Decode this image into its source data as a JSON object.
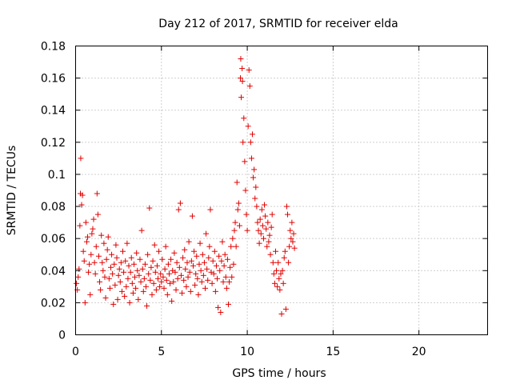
{
  "chart_data": {
    "type": "scatter",
    "title": "Day 212 of 2017, SRMTID for receiver elda",
    "xlabel": "GPS time / hours",
    "ylabel": "SRMTID / TECUs",
    "xlim": [
      0,
      24
    ],
    "ylim": [
      0,
      0.18
    ],
    "x_ticks": [
      0,
      5,
      10,
      15,
      20
    ],
    "x_tick_labels": [
      "0",
      "5",
      "10",
      "15",
      "20"
    ],
    "y_ticks": [
      0,
      0.02,
      0.04,
      0.06,
      0.08,
      0.1,
      0.12,
      0.14,
      0.16,
      0.18
    ],
    "y_tick_labels": [
      "0",
      "0.02",
      "0.04",
      "0.06",
      "0.08",
      "0.1",
      "0.12",
      "0.14",
      "0.16",
      "0.18"
    ],
    "grid": true,
    "marker": "+",
    "series": [
      {
        "name": "SRMTID",
        "color": "#e00000",
        "points": [
          [
            0.05,
            0.032
          ],
          [
            0.1,
            0.028
          ],
          [
            0.15,
            0.036
          ],
          [
            0.2,
            0.041
          ],
          [
            0.25,
            0.068
          ],
          [
            0.28,
            0.088
          ],
          [
            0.3,
            0.11
          ],
          [
            0.35,
            0.081
          ],
          [
            0.4,
            0.087
          ],
          [
            0.45,
            0.052
          ],
          [
            0.5,
            0.046
          ],
          [
            0.55,
            0.02
          ],
          [
            0.6,
            0.07
          ],
          [
            0.65,
            0.058
          ],
          [
            0.7,
            0.061
          ],
          [
            0.75,
            0.039
          ],
          [
            0.8,
            0.044
          ],
          [
            0.85,
            0.025
          ],
          [
            0.9,
            0.05
          ],
          [
            0.95,
            0.063
          ],
          [
            1.0,
            0.066
          ],
          [
            1.05,
            0.072
          ],
          [
            1.1,
            0.045
          ],
          [
            1.15,
            0.038
          ],
          [
            1.2,
            0.055
          ],
          [
            1.25,
            0.088
          ],
          [
            1.3,
            0.075
          ],
          [
            1.35,
            0.049
          ],
          [
            1.4,
            0.033
          ],
          [
            1.45,
            0.028
          ],
          [
            1.5,
            0.062
          ],
          [
            1.55,
            0.045
          ],
          [
            1.6,
            0.04
          ],
          [
            1.65,
            0.057
          ],
          [
            1.7,
            0.036
          ],
          [
            1.75,
            0.023
          ],
          [
            1.8,
            0.047
          ],
          [
            1.85,
            0.053
          ],
          [
            1.9,
            0.061
          ],
          [
            1.95,
            0.035
          ],
          [
            2.0,
            0.029
          ],
          [
            2.05,
            0.042
          ],
          [
            2.1,
            0.05
          ],
          [
            2.15,
            0.038
          ],
          [
            2.2,
            0.019
          ],
          [
            2.25,
            0.044
          ],
          [
            2.3,
            0.031
          ],
          [
            2.35,
            0.056
          ],
          [
            2.4,
            0.048
          ],
          [
            2.45,
            0.022
          ],
          [
            2.5,
            0.037
          ],
          [
            2.55,
            0.041
          ],
          [
            2.6,
            0.033
          ],
          [
            2.65,
            0.045
          ],
          [
            2.7,
            0.027
          ],
          [
            2.75,
            0.052
          ],
          [
            2.8,
            0.039
          ],
          [
            2.85,
            0.024
          ],
          [
            2.9,
            0.046
          ],
          [
            2.95,
            0.03
          ],
          [
            3.0,
            0.057
          ],
          [
            3.05,
            0.035
          ],
          [
            3.1,
            0.043
          ],
          [
            3.15,
            0.02
          ],
          [
            3.2,
            0.039
          ],
          [
            3.25,
            0.048
          ],
          [
            3.3,
            0.032
          ],
          [
            3.35,
            0.026
          ],
          [
            3.4,
            0.044
          ],
          [
            3.45,
            0.036
          ],
          [
            3.5,
            0.029
          ],
          [
            3.55,
            0.051
          ],
          [
            3.6,
            0.04
          ],
          [
            3.65,
            0.022
          ],
          [
            3.7,
            0.037
          ],
          [
            3.75,
            0.047
          ],
          [
            3.8,
            0.033
          ],
          [
            3.85,
            0.065
          ],
          [
            3.9,
            0.041
          ],
          [
            3.95,
            0.027
          ],
          [
            4.0,
            0.035
          ],
          [
            4.05,
            0.044
          ],
          [
            4.1,
            0.03
          ],
          [
            4.15,
            0.018
          ],
          [
            4.2,
            0.05
          ],
          [
            4.25,
            0.038
          ],
          [
            4.3,
            0.079
          ],
          [
            4.35,
            0.034
          ],
          [
            4.4,
            0.042
          ],
          [
            4.45,
            0.025
          ],
          [
            4.5,
            0.046
          ],
          [
            4.55,
            0.032
          ],
          [
            4.6,
            0.056
          ],
          [
            4.65,
            0.039
          ],
          [
            4.7,
            0.028
          ],
          [
            4.75,
            0.043
          ],
          [
            4.8,
            0.035
          ],
          [
            4.85,
            0.052
          ],
          [
            4.9,
            0.03
          ],
          [
            4.95,
            0.038
          ],
          [
            5.0,
            0.033
          ],
          [
            5.05,
            0.047
          ],
          [
            5.1,
            0.036
          ],
          [
            5.15,
            0.029
          ],
          [
            5.2,
            0.041
          ],
          [
            5.25,
            0.055
          ],
          [
            5.3,
            0.034
          ],
          [
            5.35,
            0.025
          ],
          [
            5.4,
            0.044
          ],
          [
            5.45,
            0.038
          ],
          [
            5.5,
            0.032
          ],
          [
            5.55,
            0.047
          ],
          [
            5.6,
            0.021
          ],
          [
            5.65,
            0.04
          ],
          [
            5.7,
            0.033
          ],
          [
            5.75,
            0.051
          ],
          [
            5.8,
            0.039
          ],
          [
            5.85,
            0.028
          ],
          [
            5.9,
            0.045
          ],
          [
            5.95,
            0.035
          ],
          [
            6.0,
            0.078
          ],
          [
            6.05,
            0.042
          ],
          [
            6.1,
            0.082
          ],
          [
            6.15,
            0.037
          ],
          [
            6.2,
            0.026
          ],
          [
            6.25,
            0.048
          ],
          [
            6.3,
            0.034
          ],
          [
            6.35,
            0.053
          ],
          [
            6.4,
            0.041
          ],
          [
            6.45,
            0.03
          ],
          [
            6.5,
            0.045
          ],
          [
            6.55,
            0.036
          ],
          [
            6.6,
            0.058
          ],
          [
            6.65,
            0.039
          ],
          [
            6.7,
            0.027
          ],
          [
            6.75,
            0.046
          ],
          [
            6.8,
            0.074
          ],
          [
            6.85,
            0.043
          ],
          [
            6.9,
            0.052
          ],
          [
            6.95,
            0.031
          ],
          [
            7.0,
            0.038
          ],
          [
            7.05,
            0.049
          ],
          [
            7.1,
            0.035
          ],
          [
            7.15,
            0.025
          ],
          [
            7.2,
            0.044
          ],
          [
            7.25,
            0.057
          ],
          [
            7.3,
            0.04
          ],
          [
            7.35,
            0.033
          ],
          [
            7.4,
            0.05
          ],
          [
            7.45,
            0.037
          ],
          [
            7.5,
            0.045
          ],
          [
            7.55,
            0.029
          ],
          [
            7.6,
            0.063
          ],
          [
            7.65,
            0.041
          ],
          [
            7.7,
            0.034
          ],
          [
            7.75,
            0.048
          ],
          [
            7.8,
            0.055
          ],
          [
            7.85,
            0.078
          ],
          [
            7.9,
            0.039
          ],
          [
            7.95,
            0.032
          ],
          [
            8.0,
            0.046
          ],
          [
            8.05,
            0.038
          ],
          [
            8.1,
            0.052
          ],
          [
            8.15,
            0.027
          ],
          [
            8.2,
            0.043
          ],
          [
            8.25,
            0.035
          ],
          [
            8.3,
            0.017
          ],
          [
            8.35,
            0.049
          ],
          [
            8.4,
            0.04
          ],
          [
            8.45,
            0.014
          ],
          [
            8.5,
            0.046
          ],
          [
            8.55,
            0.058
          ],
          [
            8.6,
            0.033
          ],
          [
            8.65,
            0.043
          ],
          [
            8.7,
            0.05
          ],
          [
            8.75,
            0.036
          ],
          [
            8.8,
            0.029
          ],
          [
            8.85,
            0.047
          ],
          [
            8.9,
            0.019
          ],
          [
            8.95,
            0.033
          ],
          [
            9.0,
            0.042
          ],
          [
            9.05,
            0.055
          ],
          [
            9.1,
            0.036
          ],
          [
            9.15,
            0.06
          ],
          [
            9.2,
            0.044
          ],
          [
            9.25,
            0.065
          ],
          [
            9.3,
            0.07
          ],
          [
            9.35,
            0.055
          ],
          [
            9.4,
            0.095
          ],
          [
            9.45,
            0.078
          ],
          [
            9.5,
            0.082
          ],
          [
            9.55,
            0.068
          ],
          [
            9.6,
            0.16
          ],
          [
            9.62,
            0.172
          ],
          [
            9.65,
            0.148
          ],
          [
            9.7,
            0.166
          ],
          [
            9.72,
            0.158
          ],
          [
            9.75,
            0.12
          ],
          [
            9.8,
            0.135
          ],
          [
            9.85,
            0.108
          ],
          [
            9.9,
            0.09
          ],
          [
            9.95,
            0.075
          ],
          [
            10.0,
            0.065
          ],
          [
            10.05,
            0.13
          ],
          [
            10.1,
            0.165
          ],
          [
            10.15,
            0.155
          ],
          [
            10.2,
            0.12
          ],
          [
            10.25,
            0.11
          ],
          [
            10.3,
            0.125
          ],
          [
            10.35,
            0.098
          ],
          [
            10.4,
            0.103
          ],
          [
            10.45,
            0.085
          ],
          [
            10.5,
            0.092
          ],
          [
            10.55,
            0.08
          ],
          [
            10.6,
            0.07
          ],
          [
            10.65,
            0.065
          ],
          [
            10.7,
            0.057
          ],
          [
            10.75,
            0.072
          ],
          [
            10.8,
            0.063
          ],
          [
            10.85,
            0.078
          ],
          [
            10.9,
            0.068
          ],
          [
            10.95,
            0.06
          ],
          [
            11.0,
            0.081
          ],
          [
            11.05,
            0.074
          ],
          [
            11.1,
            0.066
          ],
          [
            11.15,
            0.055
          ],
          [
            11.2,
            0.07
          ],
          [
            11.25,
            0.058
          ],
          [
            11.3,
            0.062
          ],
          [
            11.35,
            0.05
          ],
          [
            11.4,
            0.067
          ],
          [
            11.45,
            0.075
          ],
          [
            11.5,
            0.045
          ],
          [
            11.55,
            0.038
          ],
          [
            11.6,
            0.032
          ],
          [
            11.65,
            0.052
          ],
          [
            11.7,
            0.04
          ],
          [
            11.75,
            0.03
          ],
          [
            11.8,
            0.045
          ],
          [
            11.85,
            0.035
          ],
          [
            11.9,
            0.028
          ],
          [
            11.95,
            0.038
          ],
          [
            12.0,
            0.013
          ],
          [
            12.05,
            0.04
          ],
          [
            12.1,
            0.032
          ],
          [
            12.15,
            0.048
          ],
          [
            12.2,
            0.052
          ],
          [
            12.25,
            0.016
          ],
          [
            12.3,
            0.08
          ],
          [
            12.35,
            0.075
          ],
          [
            12.4,
            0.045
          ],
          [
            12.45,
            0.055
          ],
          [
            12.5,
            0.065
          ],
          [
            12.55,
            0.06
          ],
          [
            12.6,
            0.07
          ],
          [
            12.65,
            0.058
          ],
          [
            12.7,
            0.063
          ],
          [
            12.75,
            0.054
          ]
        ]
      }
    ]
  }
}
